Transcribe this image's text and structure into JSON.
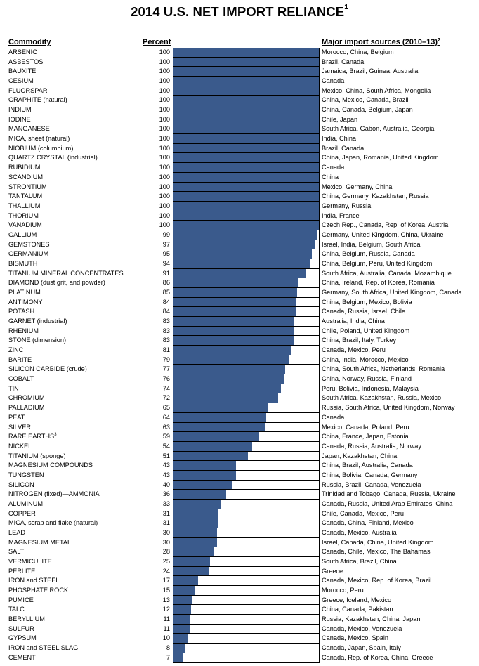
{
  "chart_data": {
    "type": "bar",
    "orientation": "horizontal",
    "title": "2014 U.S. NET IMPORT RELIANCE",
    "title_footnote": "1",
    "column_headers": {
      "commodity": "Commodity",
      "percent": "Percent",
      "sources": "Major import sources (2010–13)",
      "sources_footnote": "2"
    },
    "xlim": [
      0,
      100
    ],
    "bar_color": "#3a5a8c",
    "rows": [
      {
        "commodity": "ARSENIC",
        "percent": 100,
        "sources": "Morocco, China, Belgium"
      },
      {
        "commodity": "ASBESTOS",
        "percent": 100,
        "sources": "Brazil, Canada"
      },
      {
        "commodity": "BAUXITE",
        "percent": 100,
        "sources": "Jamaica, Brazil, Guinea, Australia"
      },
      {
        "commodity": "CESIUM",
        "percent": 100,
        "sources": "Canada"
      },
      {
        "commodity": "FLUORSPAR",
        "percent": 100,
        "sources": "Mexico, China, South Africa, Mongolia"
      },
      {
        "commodity": "GRAPHITE (natural)",
        "percent": 100,
        "sources": "China, Mexico, Canada, Brazil"
      },
      {
        "commodity": "INDIUM",
        "percent": 100,
        "sources": "China, Canada, Belgium, Japan"
      },
      {
        "commodity": "IODINE",
        "percent": 100,
        "sources": "Chile, Japan"
      },
      {
        "commodity": "MANGANESE",
        "percent": 100,
        "sources": "South Africa, Gabon, Australia, Georgia"
      },
      {
        "commodity": "MICA, sheet (natural)",
        "percent": 100,
        "sources": "India, China"
      },
      {
        "commodity": "NIOBIUM (columbium)",
        "percent": 100,
        "sources": "Brazil, Canada"
      },
      {
        "commodity": "QUARTZ CRYSTAL (industrial)",
        "percent": 100,
        "sources": "China, Japan, Romania, United Kingdom"
      },
      {
        "commodity": "RUBIDIUM",
        "percent": 100,
        "sources": "Canada"
      },
      {
        "commodity": "SCANDIUM",
        "percent": 100,
        "sources": "China"
      },
      {
        "commodity": "STRONTIUM",
        "percent": 100,
        "sources": "Mexico, Germany, China"
      },
      {
        "commodity": "TANTALUM",
        "percent": 100,
        "sources": "China, Germany, Kazakhstan, Russia"
      },
      {
        "commodity": "THALLIUM",
        "percent": 100,
        "sources": "Germany, Russia"
      },
      {
        "commodity": "THORIUM",
        "percent": 100,
        "sources": "India, France"
      },
      {
        "commodity": "VANADIUM",
        "percent": 100,
        "sources": "Czech Rep., Canada, Rep. of Korea, Austria"
      },
      {
        "commodity": "GALLIUM",
        "percent": 99,
        "sources": "Germany, United Kingdom, China, Ukraine"
      },
      {
        "commodity": "GEMSTONES",
        "percent": 97,
        "sources": "Israel, India, Belgium, South Africa"
      },
      {
        "commodity": "GERMANIUM",
        "percent": 95,
        "sources": "China, Belgium, Russia, Canada"
      },
      {
        "commodity": "BISMUTH",
        "percent": 94,
        "sources": "China, Belgium, Peru, United Kingdom"
      },
      {
        "commodity": "TITANIUM MINERAL CONCENTRATES",
        "percent": 91,
        "sources": "South Africa, Australia, Canada, Mozambique"
      },
      {
        "commodity": "DIAMOND (dust grit, and powder)",
        "percent": 86,
        "sources": "China, Ireland, Rep. of Korea, Romania"
      },
      {
        "commodity": "PLATINUM",
        "percent": 85,
        "sources": "Germany, South Africa, United Kingdom, Canada"
      },
      {
        "commodity": "ANTIMONY",
        "percent": 84,
        "sources": "China, Belgium, Mexico, Bolivia"
      },
      {
        "commodity": "POTASH",
        "percent": 84,
        "sources": "Canada, Russia, Israel, Chile"
      },
      {
        "commodity": "GARNET (industrial)",
        "percent": 83,
        "sources": "Australia, India, China"
      },
      {
        "commodity": "RHENIUM",
        "percent": 83,
        "sources": "Chile, Poland, United Kingdom"
      },
      {
        "commodity": "STONE (dimension)",
        "percent": 83,
        "sources": "China, Brazil, Italy, Turkey"
      },
      {
        "commodity": "ZINC",
        "percent": 81,
        "sources": "Canada, Mexico, Peru"
      },
      {
        "commodity": "BARITE",
        "percent": 79,
        "sources": "China, India, Morocco, Mexico"
      },
      {
        "commodity": "SILICON CARBIDE (crude)",
        "percent": 77,
        "sources": "China, South Africa, Netherlands, Romania"
      },
      {
        "commodity": "COBALT",
        "percent": 76,
        "sources": "China, Norway, Russia, Finland"
      },
      {
        "commodity": "TIN",
        "percent": 74,
        "sources": "Peru, Bolivia, Indonesia, Malaysia"
      },
      {
        "commodity": "CHROMIUM",
        "percent": 72,
        "sources": "South Africa, Kazakhstan, Russia, Mexico"
      },
      {
        "commodity": "PALLADIUM",
        "percent": 65,
        "sources": "Russia, South Africa, United Kingdom, Norway"
      },
      {
        "commodity": "PEAT",
        "percent": 64,
        "sources": "Canada"
      },
      {
        "commodity": "SILVER",
        "percent": 63,
        "sources": "Mexico, Canada, Poland, Peru"
      },
      {
        "commodity": "RARE EARTHS",
        "footnote": "3",
        "percent": 59,
        "sources": "China, France, Japan, Estonia"
      },
      {
        "commodity": "NICKEL",
        "percent": 54,
        "sources": "Canada, Russia, Australia, Norway"
      },
      {
        "commodity": "TITANIUM (sponge)",
        "percent": 51,
        "sources": "Japan, Kazakhstan, China"
      },
      {
        "commodity": "MAGNESIUM COMPOUNDS",
        "percent": 43,
        "sources": "China, Brazil, Australia, Canada"
      },
      {
        "commodity": "TUNGSTEN",
        "percent": 43,
        "sources": "China, Bolivia, Canada, Germany"
      },
      {
        "commodity": "SILICON",
        "percent": 40,
        "sources": "Russia, Brazil, Canada, Venezuela"
      },
      {
        "commodity": "NITROGEN (fixed)—AMMONIA",
        "percent": 36,
        "sources": "Trinidad and Tobago, Canada, Russia, Ukraine"
      },
      {
        "commodity": "ALUMINUM",
        "percent": 33,
        "sources": "Canada, Russia, United Arab Emirates, China"
      },
      {
        "commodity": "COPPER",
        "percent": 31,
        "sources": "Chile, Canada, Mexico, Peru"
      },
      {
        "commodity": "MICA, scrap and flake (natural)",
        "percent": 31,
        "sources": "Canada, China, Finland, Mexico"
      },
      {
        "commodity": "LEAD",
        "percent": 30,
        "sources": "Canada, Mexico, Australia"
      },
      {
        "commodity": "MAGNESIUM METAL",
        "percent": 30,
        "sources": "Israel, Canada, China, United Kingdom"
      },
      {
        "commodity": "SALT",
        "percent": 28,
        "sources": "Canada, Chile, Mexico, The Bahamas"
      },
      {
        "commodity": "VERMICULITE",
        "percent": 25,
        "sources": "South Africa, Brazil, China"
      },
      {
        "commodity": "PERLITE",
        "percent": 24,
        "sources": "Greece"
      },
      {
        "commodity": "IRON and STEEL",
        "percent": 17,
        "sources": "Canada, Mexico, Rep. of Korea, Brazil"
      },
      {
        "commodity": "PHOSPHATE ROCK",
        "percent": 15,
        "sources": "Morocco, Peru"
      },
      {
        "commodity": "PUMICE",
        "percent": 13,
        "sources": "Greece, Iceland, Mexico"
      },
      {
        "commodity": "TALC",
        "percent": 12,
        "sources": "China, Canada, Pakistan"
      },
      {
        "commodity": "BERYLLIUM",
        "percent": 11,
        "sources": "Russia, Kazakhstan, China, Japan"
      },
      {
        "commodity": "SULFUR",
        "percent": 11,
        "sources": "Canada, Mexico, Venezuela"
      },
      {
        "commodity": "GYPSUM",
        "percent": 10,
        "sources": "Canada, Mexico, Spain"
      },
      {
        "commodity": "IRON and STEEL SLAG",
        "percent": 8,
        "sources": "Canada, Japan, Spain, Italy"
      },
      {
        "commodity": "CEMENT",
        "percent": 7,
        "sources": "Canada, Rep. of Korea, China, Greece"
      }
    ]
  }
}
